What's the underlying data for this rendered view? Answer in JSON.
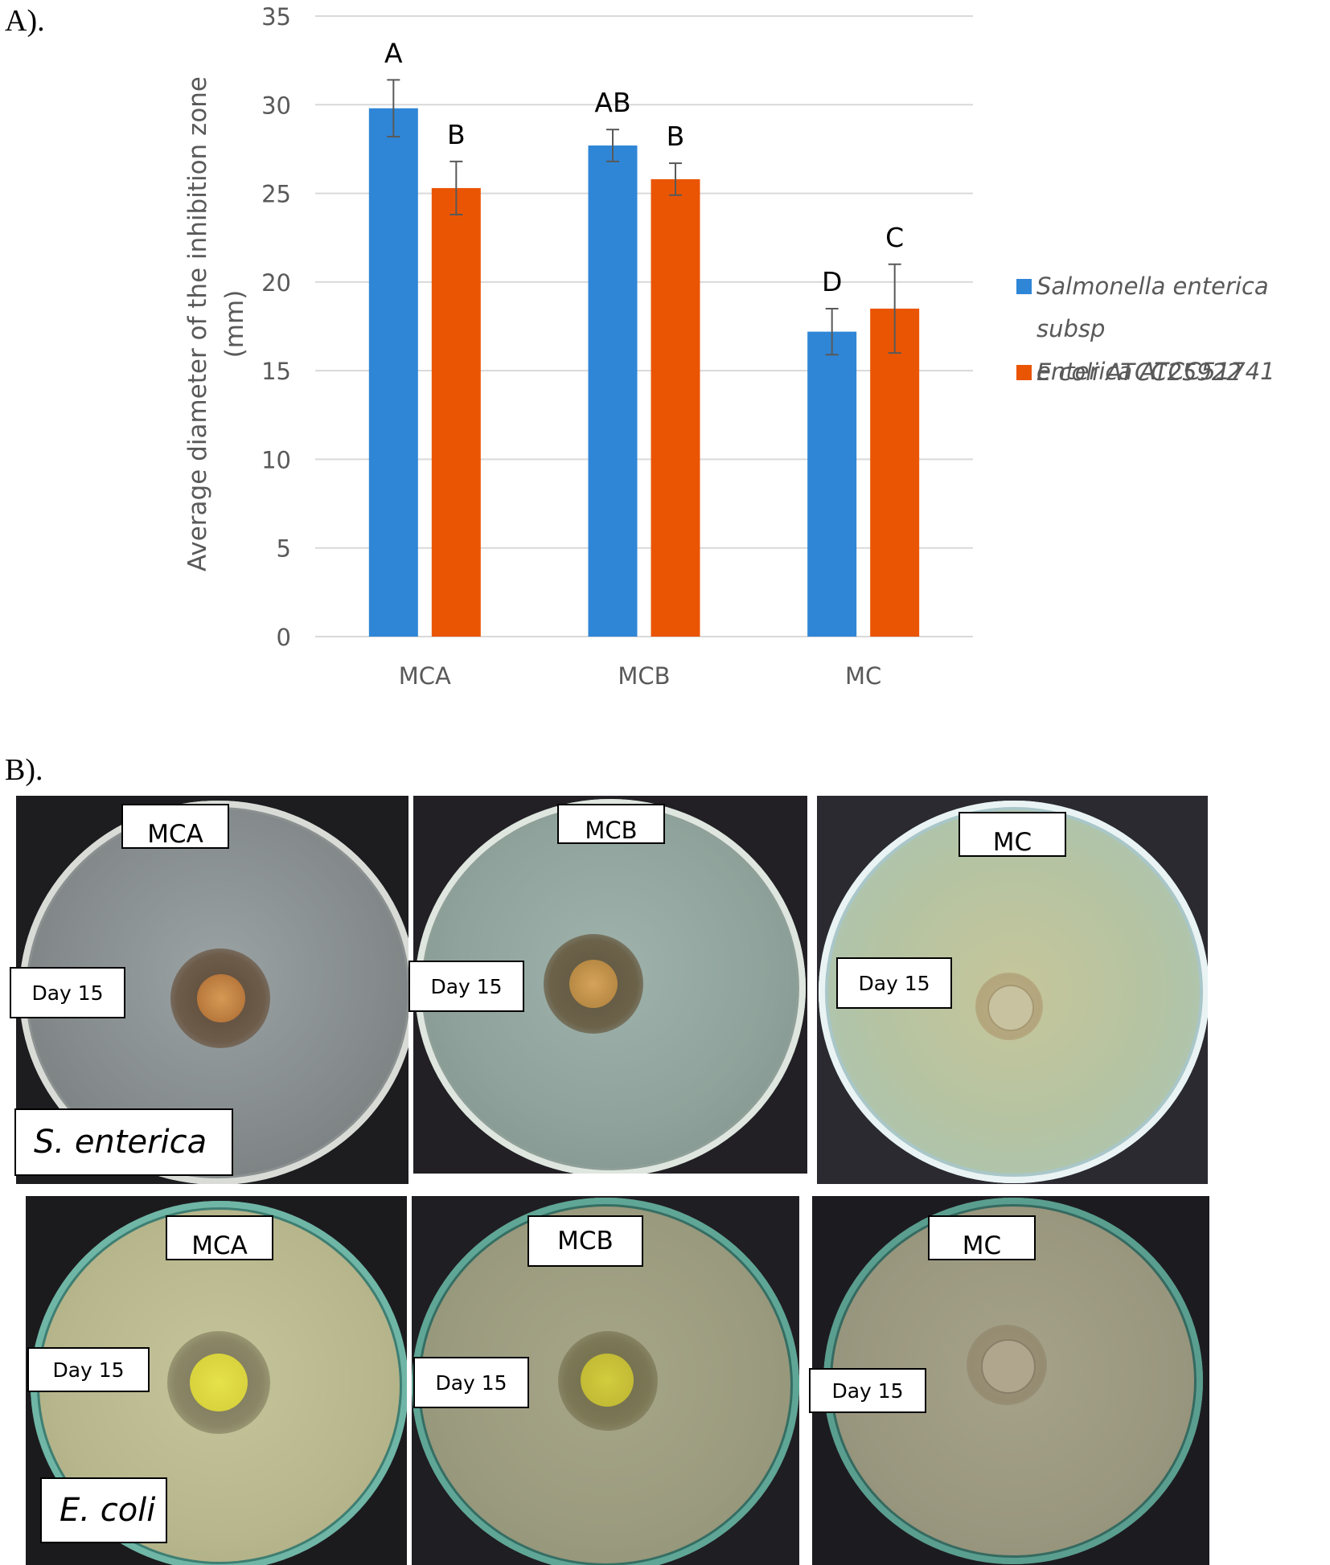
{
  "panel_a_label": "A).",
  "panel_b_label": "B).",
  "chart_data": {
    "type": "bar",
    "title": "",
    "xlabel": "",
    "ylabel": "Average diameter of the inhibition zone (mm)",
    "ylabel_line1": "Average diameter of the inhibition zone",
    "ylabel_line2": "(mm)",
    "ylim": [
      0,
      35
    ],
    "yticks": [
      0,
      5,
      10,
      15,
      20,
      25,
      30,
      35
    ],
    "grid": true,
    "legend_position": "right",
    "categories": [
      "MCA",
      "MCB",
      "MC"
    ],
    "series": [
      {
        "name": "Salmonella enterica subsp enterica ATCC51741",
        "legend_line1": "Salmonella enterica subsp",
        "legend_line2": "enterica ATCC51741",
        "color": "#2f86d6",
        "values": [
          29.8,
          27.7,
          17.2
        ],
        "error": [
          1.6,
          0.9,
          1.3
        ],
        "letters": [
          "A",
          "AB",
          "D"
        ]
      },
      {
        "name": "E coli ATCC25922",
        "legend_line1": "E coli ATCC25922",
        "color": "#ea5504",
        "values": [
          25.3,
          25.8,
          18.5
        ],
        "error": [
          1.5,
          0.9,
          2.5
        ],
        "letters": [
          "B",
          "B",
          "C"
        ]
      }
    ]
  },
  "plates": {
    "day_label": "Day 15",
    "rows": [
      {
        "organism": "S. enterica",
        "labels": [
          "MCA",
          "MCB",
          "MC"
        ]
      },
      {
        "organism": "E. coli",
        "labels": [
          "MCA",
          "MCB",
          "MC"
        ]
      }
    ]
  }
}
